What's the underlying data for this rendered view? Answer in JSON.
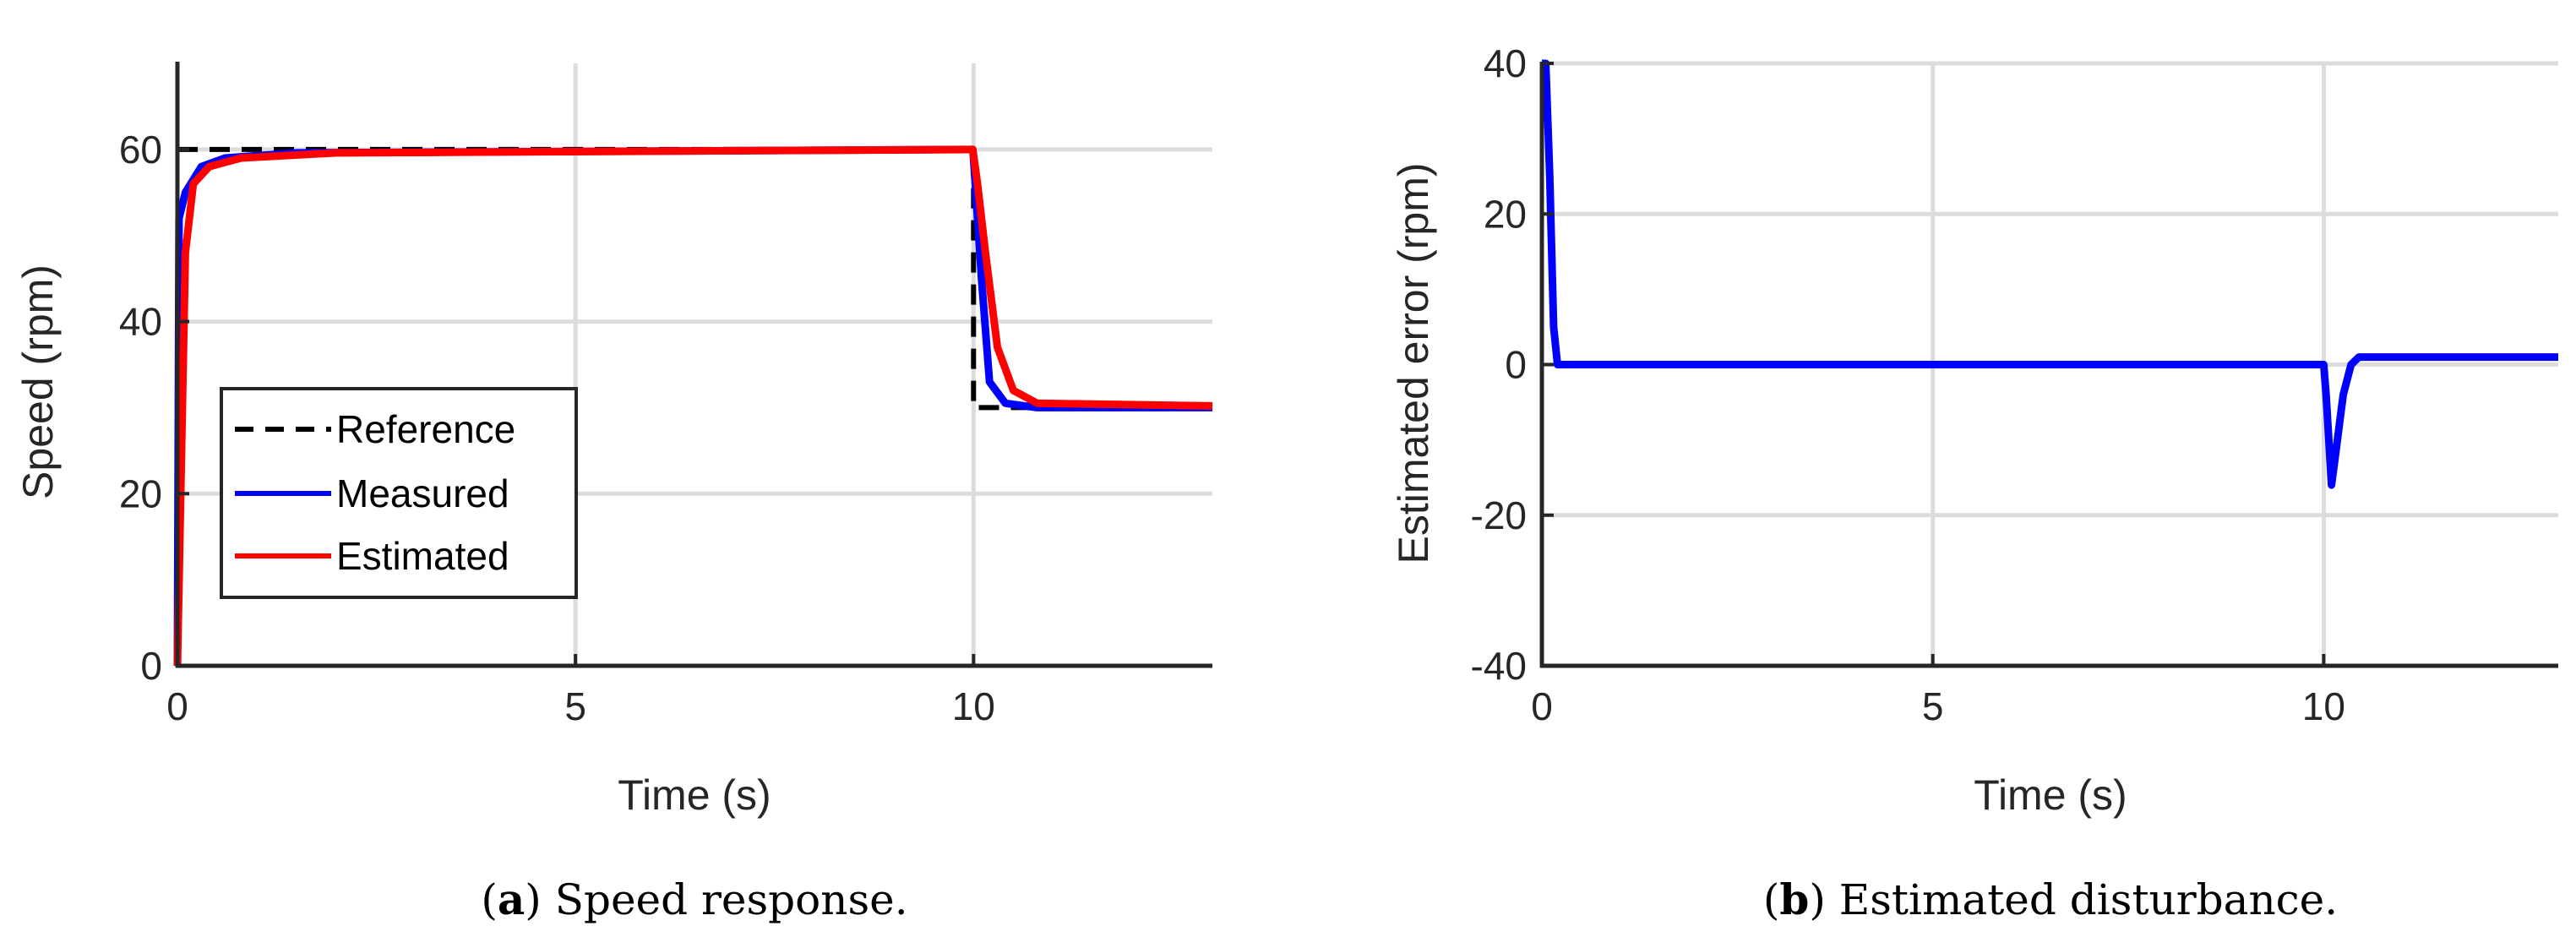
{
  "chart_data": [
    {
      "type": "line",
      "caption_label": "a",
      "caption_text": "Speed response.",
      "xlabel": "Time (s)",
      "ylabel": "Speed (rpm)",
      "xlim": [
        0,
        13
      ],
      "ylim": [
        0,
        70
      ],
      "xticks": [
        0,
        5,
        10
      ],
      "yticks": [
        0,
        20,
        40,
        60
      ],
      "grid": true,
      "legend": "lower-left",
      "series": [
        {
          "name": "Reference",
          "color": "#000000",
          "style": "dashed",
          "points": [
            [
              0,
              60
            ],
            [
              10,
              60
            ],
            [
              10,
              30
            ],
            [
              13,
              30
            ]
          ]
        },
        {
          "name": "Measured",
          "color": "#0000ff",
          "style": "solid",
          "points": [
            [
              0,
              0
            ],
            [
              0.02,
              52
            ],
            [
              0.1,
              55
            ],
            [
              0.3,
              58
            ],
            [
              0.6,
              59
            ],
            [
              1.5,
              59.6
            ],
            [
              9.99,
              60
            ],
            [
              10,
              59
            ],
            [
              10.1,
              45
            ],
            [
              10.2,
              33
            ],
            [
              10.4,
              30.5
            ],
            [
              10.8,
              30
            ],
            [
              13,
              30
            ]
          ]
        },
        {
          "name": "Estimated",
          "color": "#ff0000",
          "style": "solid",
          "points": [
            [
              0,
              0
            ],
            [
              0.1,
              48
            ],
            [
              0.2,
              56
            ],
            [
              0.4,
              58
            ],
            [
              0.8,
              59
            ],
            [
              2,
              59.6
            ],
            [
              9.99,
              60
            ],
            [
              10.05,
              56
            ],
            [
              10.15,
              48
            ],
            [
              10.3,
              37
            ],
            [
              10.5,
              32
            ],
            [
              10.8,
              30.5
            ],
            [
              13,
              30.2
            ]
          ]
        }
      ]
    },
    {
      "type": "line",
      "caption_label": "b",
      "caption_text": "Estimated disturbance.",
      "xlabel": "Time (s)",
      "ylabel": "Estimated error (rpm)",
      "xlim": [
        0,
        13
      ],
      "ylim": [
        -40,
        40
      ],
      "xticks": [
        0,
        5,
        10
      ],
      "yticks": [
        -40,
        -20,
        0,
        20,
        40
      ],
      "grid": true,
      "series": [
        {
          "name": "",
          "color": "#0000ff",
          "style": "solid",
          "points": [
            [
              0,
              40
            ],
            [
              0.05,
              40
            ],
            [
              0.1,
              25
            ],
            [
              0.15,
              5
            ],
            [
              0.2,
              0
            ],
            [
              10,
              0
            ],
            [
              10.03,
              -4
            ],
            [
              10.1,
              -16
            ],
            [
              10.15,
              -12
            ],
            [
              10.25,
              -4
            ],
            [
              10.35,
              0
            ],
            [
              10.45,
              1
            ],
            [
              13,
              1
            ]
          ]
        }
      ]
    }
  ]
}
